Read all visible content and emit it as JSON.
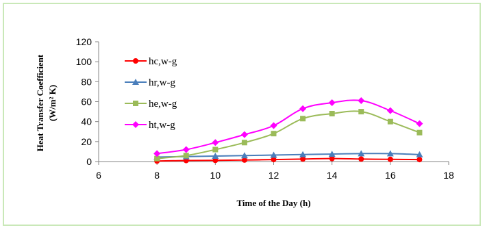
{
  "chart_data": {
    "type": "line",
    "title": "",
    "xlabel": "Time of the Day (h)",
    "ylabel": "Heat Transfer Coefficient",
    "ylabel_unit": "(W/m² K)",
    "xlim": [
      6,
      18
    ],
    "ylim": [
      0,
      120
    ],
    "xticks": [
      6,
      8,
      10,
      12,
      14,
      16,
      18
    ],
    "yticks": [
      0,
      20,
      40,
      60,
      80,
      100,
      120
    ],
    "grid": false,
    "legend_position": "left",
    "x": [
      8,
      9,
      10,
      11,
      12,
      13,
      14,
      15,
      16,
      17
    ],
    "series": [
      {
        "name": "hc,w-g",
        "color": "#ff0000",
        "marker": "circle",
        "values": [
          0.5,
          1,
          1.2,
          1.5,
          2,
          2.5,
          3,
          2.5,
          2.2,
          2
        ]
      },
      {
        "name": "hr,w-g",
        "color": "#4a7ebb",
        "marker": "triangle",
        "values": [
          4.5,
          5,
          5.5,
          6,
          6.5,
          7,
          7.5,
          8,
          8,
          7
        ]
      },
      {
        "name": "he,w-g",
        "color": "#9bbb59",
        "marker": "square",
        "values": [
          3,
          6,
          12,
          19,
          28,
          43,
          48,
          50,
          40,
          29
        ]
      },
      {
        "name": "ht,w-g",
        "color": "#ff00ff",
        "marker": "diamond",
        "values": [
          8,
          12,
          19,
          27,
          36,
          53,
          59,
          61,
          51,
          38
        ]
      }
    ]
  }
}
